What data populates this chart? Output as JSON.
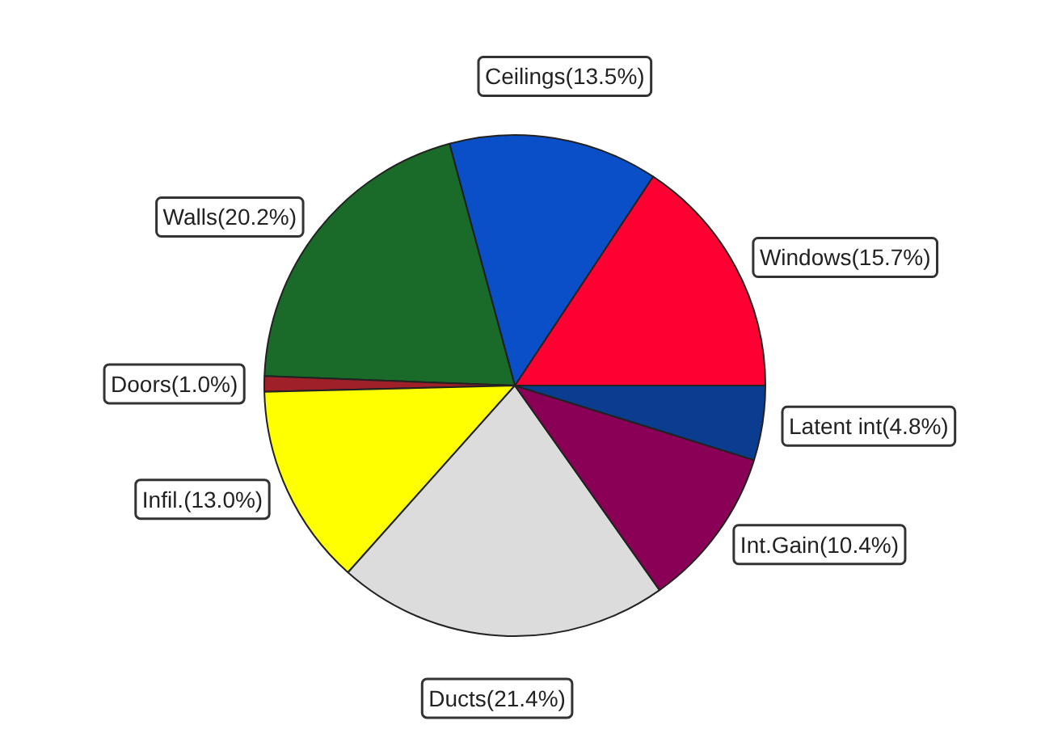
{
  "chart_data": {
    "type": "pie",
    "categories": [
      "Windows",
      "Ceilings",
      "Walls",
      "Doors",
      "Infil.",
      "Ducts",
      "Int.Gain",
      "Latent int"
    ],
    "values": [
      15.7,
      13.5,
      20.2,
      1.0,
      13.0,
      21.4,
      10.4,
      4.8
    ],
    "value_labels": [
      "(15.7%)",
      "(13.5%)",
      "(20.2%)",
      "(1.0%)",
      "(13.0%)",
      "(21.4%)",
      "(10.4%)",
      "(4.8%)"
    ],
    "colors": [
      "#ff0033",
      "#0a4fc8",
      "#1a6b2a",
      "#a0202a",
      "#ffff00",
      "#dcdcdc",
      "#8b0057",
      "#0a3d8f"
    ]
  }
}
